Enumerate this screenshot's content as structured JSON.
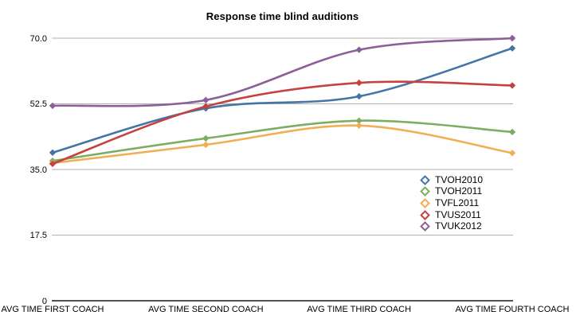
{
  "chart_data": {
    "type": "line",
    "title": "Response time blind auditions",
    "categories": [
      "AVG TIME FIRST COACH",
      "AVG TIME SECOND COACH",
      "AVG TIME THIRD COACH",
      "AVG TIME FOURTH COACH"
    ],
    "series": [
      {
        "name": "TVOH2010",
        "color": "#4574a7",
        "values": [
          39.5,
          51.3,
          54.5,
          67.3
        ]
      },
      {
        "name": "TVOH2011",
        "color": "#7cad63",
        "values": [
          37.3,
          43.3,
          48.0,
          45.0
        ]
      },
      {
        "name": "TVFL2011",
        "color": "#f1ae55",
        "values": [
          36.7,
          41.6,
          46.7,
          39.4
        ]
      },
      {
        "name": "TVUS2011",
        "color": "#c5423f",
        "values": [
          36.5,
          51.8,
          58.1,
          57.4
        ]
      },
      {
        "name": "TVUK2012",
        "color": "#8b6098",
        "values": [
          52.0,
          53.5,
          66.9,
          70.0
        ]
      }
    ],
    "ytick_labels": [
      "70.0",
      "52.5",
      "35.0",
      "17.5",
      "0"
    ],
    "ytick_values": [
      70,
      52.5,
      35,
      17.5,
      0
    ],
    "ylim": [
      0,
      70
    ],
    "grid": true,
    "gridline_color": "#b1b1b1",
    "axis_color": "#1a1a1a",
    "legend_position": "right-middle",
    "marker_shape": "diamond"
  }
}
